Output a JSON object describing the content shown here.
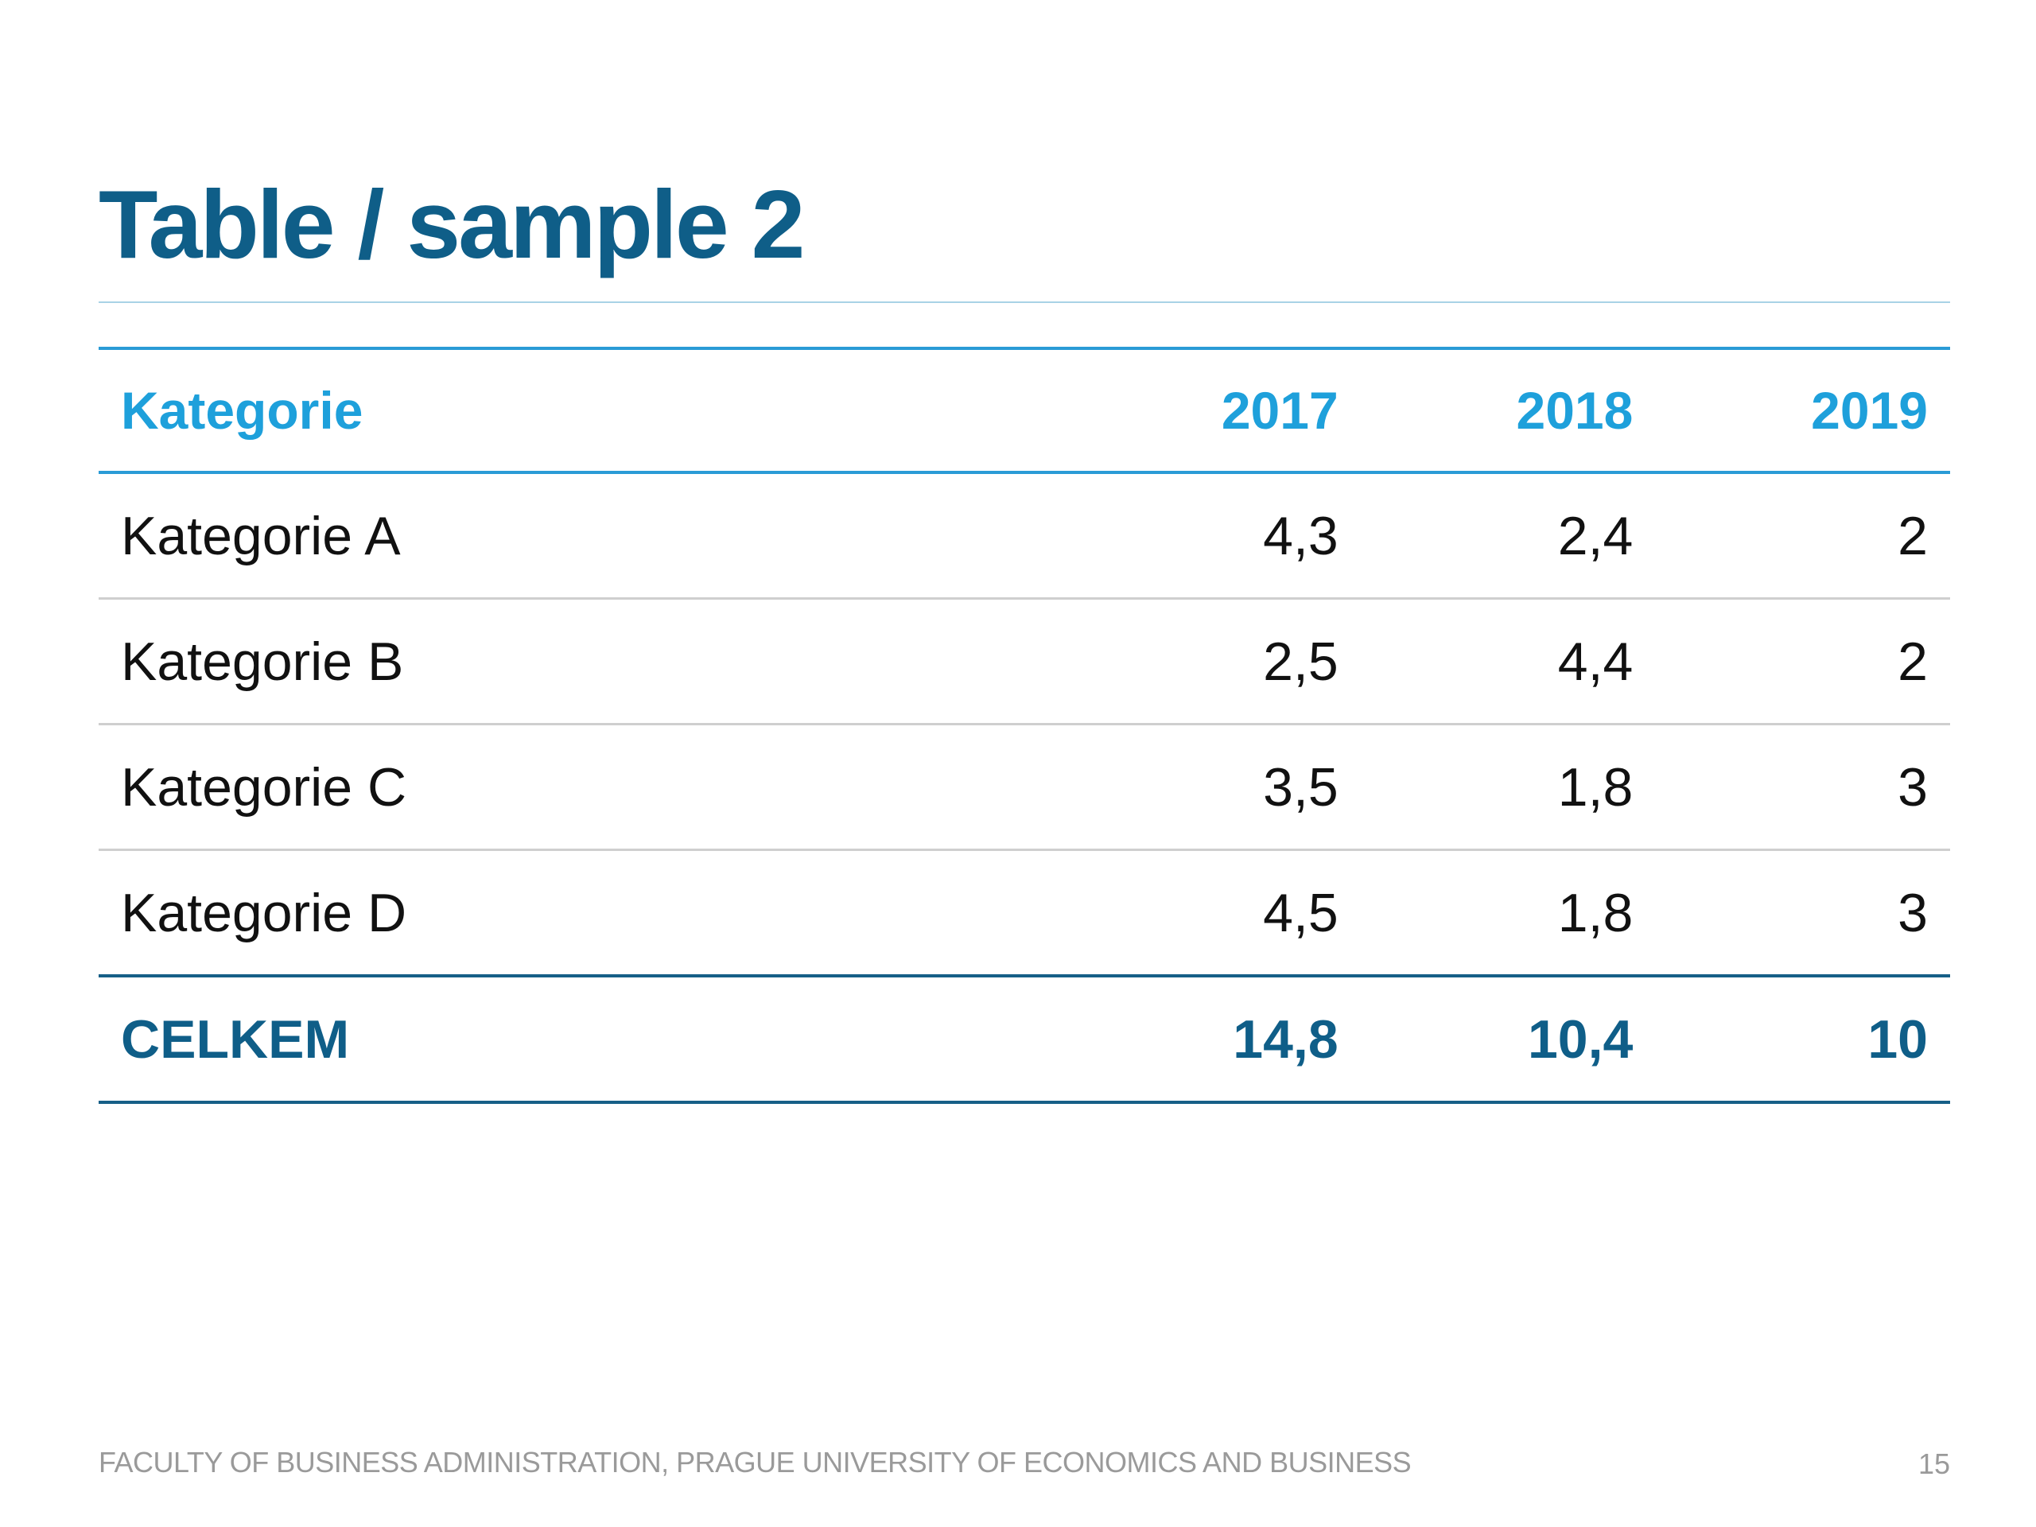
{
  "slide": {
    "title": "Table / sample 2",
    "footer": "FACULTY OF BUSINESS ADMINISTRATION, PRAGUE UNIVERSITY OF ECONOMICS AND BUSINESS",
    "page_number": "15"
  },
  "table": {
    "headers": [
      "Kategorie",
      "2017",
      "2018",
      "2019"
    ],
    "rows": [
      [
        "Kategorie A",
        "4,3",
        "2,4",
        "2"
      ],
      [
        "Kategorie B",
        "2,5",
        "4,4",
        "2"
      ],
      [
        "Kategorie C",
        "3,5",
        "1,8",
        "3"
      ],
      [
        "Kategorie D",
        "4,5",
        "1,8",
        "3"
      ]
    ],
    "total": [
      "CELKEM",
      "14,8",
      "10,4",
      "10"
    ]
  },
  "colors": {
    "title": "#0f5e88",
    "header_text": "#1ea0db",
    "header_rule": "#2a9bd6",
    "total_rule": "#165f87",
    "row_rule": "#cfcfcf",
    "footer_text": "#9a9a9a"
  }
}
